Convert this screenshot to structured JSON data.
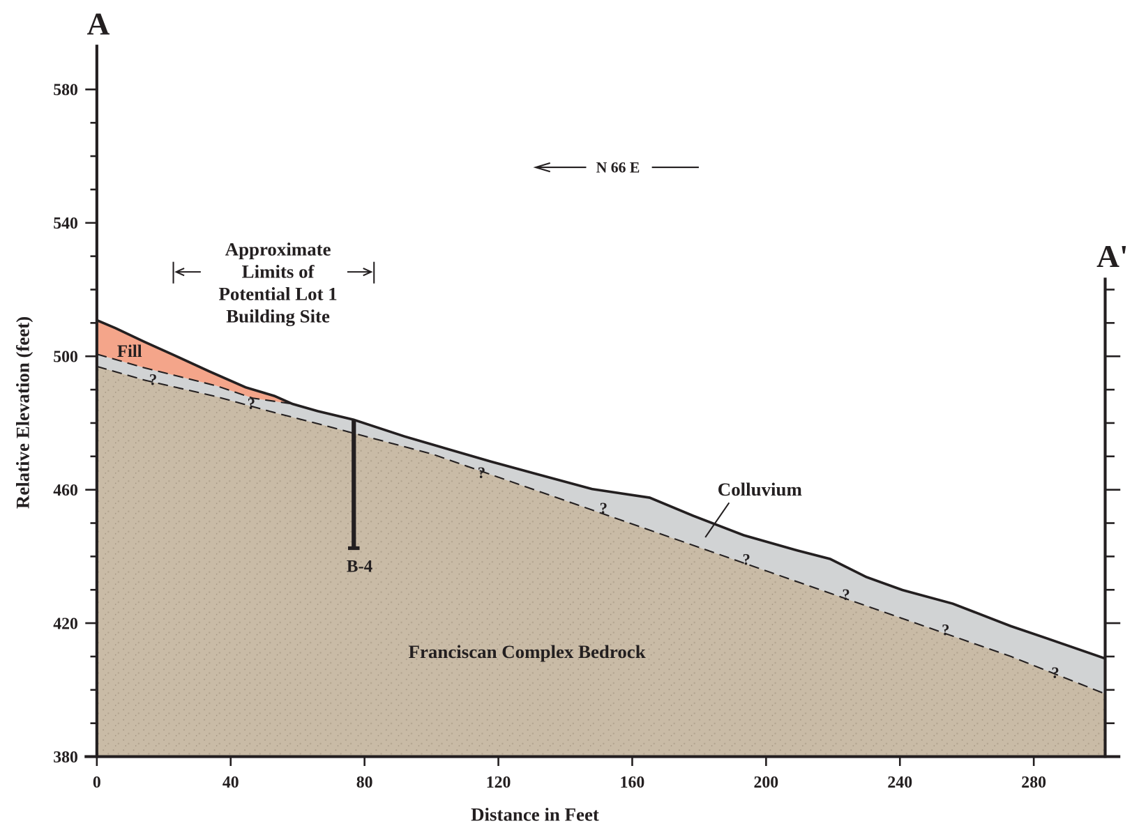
{
  "section": {
    "start_label": "A",
    "end_label": "A'",
    "direction": "N 66 E",
    "site_label": [
      "Approximate",
      "Limits of",
      "Potential Lot 1",
      "Building Site"
    ],
    "units": {
      "fill": "Fill",
      "colluvium": "Colluvium",
      "bedrock": "Franciscan Complex Bedrock"
    },
    "boring": "B-4",
    "query_marks": [
      "?",
      "?",
      "?",
      "?",
      "?",
      "?",
      "?",
      "?"
    ]
  },
  "axis": {
    "x_label": "Distance in Feet",
    "y_label": "Relative Elevation (feet)",
    "xticks": [
      0,
      40,
      80,
      120,
      160,
      200,
      240,
      280
    ],
    "yticks": [
      380,
      420,
      460,
      500,
      540,
      580
    ]
  }
}
